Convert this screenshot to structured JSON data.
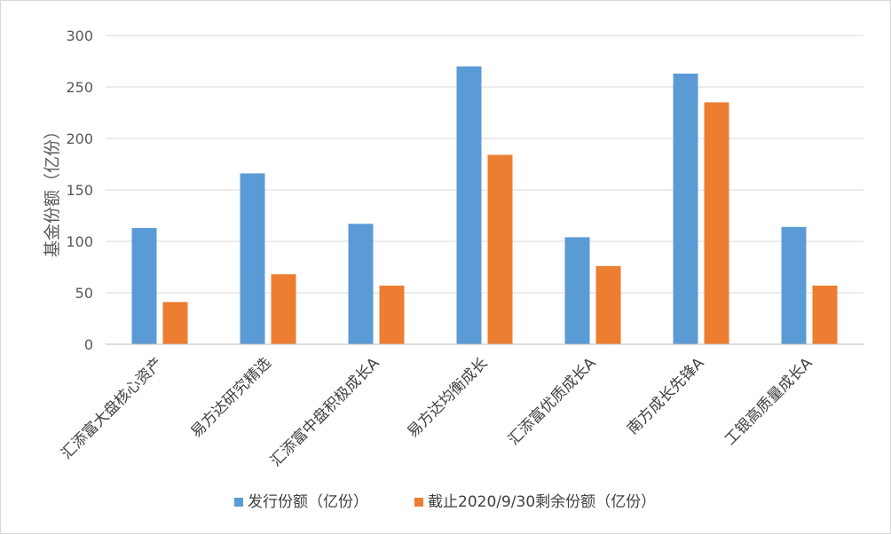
{
  "chart_data": {
    "type": "bar",
    "title": "",
    "xlabel": "",
    "ylabel": "基金份额（亿份）",
    "ylim": [
      0,
      300
    ],
    "yticks": [
      0,
      50,
      100,
      150,
      200,
      250,
      300
    ],
    "grid": true,
    "legend_position": "bottom",
    "categories": [
      "汇添富大盘核心资产",
      "易方达研究精选",
      "汇添富中盘积极成长A",
      "易方达均衡成长",
      "汇添富优质成长A",
      "南方成长先锋A",
      "工银高质量成长A"
    ],
    "series": [
      {
        "name": "发行份额（亿份）",
        "color": "#5B9BD5",
        "values": [
          113,
          166,
          117,
          270,
          104,
          263,
          114
        ]
      },
      {
        "name": "截止2020/9/30剩余份额（亿份）",
        "color": "#ED7D31",
        "values": [
          41,
          68,
          57,
          184,
          76,
          235,
          57
        ]
      }
    ]
  }
}
